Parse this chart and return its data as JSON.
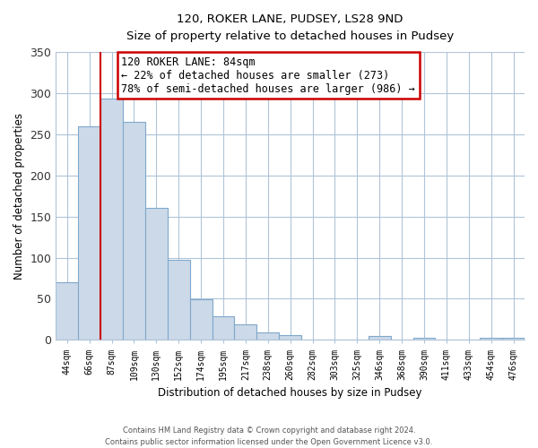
{
  "title": "120, ROKER LANE, PUDSEY, LS28 9ND",
  "subtitle": "Size of property relative to detached houses in Pudsey",
  "xlabel": "Distribution of detached houses by size in Pudsey",
  "ylabel": "Number of detached properties",
  "bar_labels": [
    "44sqm",
    "66sqm",
    "87sqm",
    "109sqm",
    "130sqm",
    "152sqm",
    "174sqm",
    "195sqm",
    "217sqm",
    "238sqm",
    "260sqm",
    "282sqm",
    "303sqm",
    "325sqm",
    "346sqm",
    "368sqm",
    "390sqm",
    "411sqm",
    "433sqm",
    "454sqm",
    "476sqm"
  ],
  "bar_values": [
    70,
    260,
    293,
    265,
    160,
    97,
    49,
    29,
    19,
    9,
    6,
    0,
    0,
    0,
    5,
    0,
    3,
    0,
    0,
    3,
    3
  ],
  "bar_fill_color": "#ccd9e8",
  "bar_edge_color": "#7fa8cc",
  "highlight_color": "#cc0000",
  "ylim": [
    0,
    350
  ],
  "yticks": [
    0,
    50,
    100,
    150,
    200,
    250,
    300,
    350
  ],
  "annotation_title": "120 ROKER LANE: 84sqm",
  "annotation_line1": "← 22% of detached houses are smaller (273)",
  "annotation_line2": "78% of semi-detached houses are larger (986) →",
  "annotation_box_color": "#ffffff",
  "annotation_box_edge": "#cc0000",
  "vline_color": "#cc0000",
  "footer_line1": "Contains HM Land Registry data © Crown copyright and database right 2024.",
  "footer_line2": "Contains public sector information licensed under the Open Government Licence v3.0.",
  "background_color": "#ffffff",
  "grid_color": "#b0c4d8",
  "axis_color": "#b0c4d8"
}
